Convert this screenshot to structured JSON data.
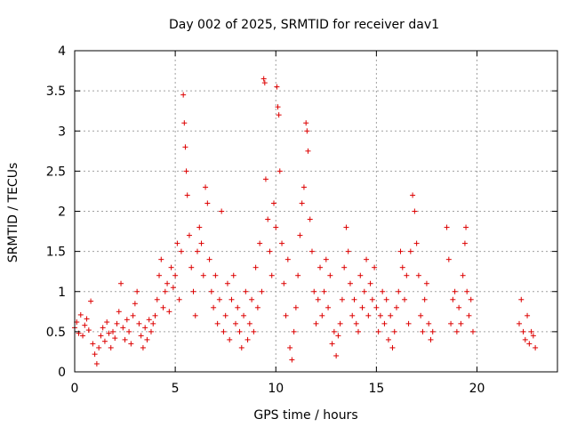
{
  "chart_data": {
    "type": "scatter",
    "title": "Day 002 of 2025, SRMTID for receiver dav1",
    "xlabel": "GPS time / hours",
    "ylabel": "SRMTID / TECUs",
    "xlim": [
      0,
      24
    ],
    "ylim": [
      0,
      4
    ],
    "xticks": [
      0,
      5,
      10,
      15,
      20
    ],
    "yticks": [
      0,
      0.5,
      1,
      1.5,
      2,
      2.5,
      3,
      3.5,
      4
    ],
    "xtick_labels": [
      "0",
      "5",
      "10",
      "15",
      "20"
    ],
    "ytick_labels": [
      "0",
      "0.5",
      "1",
      "1.5",
      "2",
      "2.5",
      "3",
      "3.5",
      "4"
    ],
    "grid": true,
    "marker": "+",
    "color": "#dd0000",
    "series": [
      {
        "name": "dav1",
        "points": [
          [
            0.0,
            0.55
          ],
          [
            0.1,
            0.62
          ],
          [
            0.2,
            0.48
          ],
          [
            0.3,
            0.71
          ],
          [
            0.4,
            0.45
          ],
          [
            0.5,
            0.58
          ],
          [
            0.6,
            0.66
          ],
          [
            0.7,
            0.52
          ],
          [
            0.8,
            0.88
          ],
          [
            0.9,
            0.35
          ],
          [
            1.0,
            0.22
          ],
          [
            1.1,
            0.1
          ],
          [
            1.2,
            0.3
          ],
          [
            1.3,
            0.45
          ],
          [
            1.4,
            0.55
          ],
          [
            1.5,
            0.38
          ],
          [
            1.6,
            0.62
          ],
          [
            1.7,
            0.48
          ],
          [
            1.8,
            0.3
          ],
          [
            1.9,
            0.5
          ],
          [
            2.0,
            0.42
          ],
          [
            2.1,
            0.6
          ],
          [
            2.2,
            0.75
          ],
          [
            2.3,
            1.1
          ],
          [
            2.4,
            0.55
          ],
          [
            2.5,
            0.4
          ],
          [
            2.6,
            0.65
          ],
          [
            2.7,
            0.5
          ],
          [
            2.8,
            0.35
          ],
          [
            2.9,
            0.7
          ],
          [
            3.0,
            0.85
          ],
          [
            3.1,
            1.0
          ],
          [
            3.2,
            0.6
          ],
          [
            3.3,
            0.45
          ],
          [
            3.4,
            0.3
          ],
          [
            3.5,
            0.55
          ],
          [
            3.6,
            0.4
          ],
          [
            3.7,
            0.65
          ],
          [
            3.8,
            0.5
          ],
          [
            3.9,
            0.6
          ],
          [
            4.0,
            0.7
          ],
          [
            4.1,
            0.9
          ],
          [
            4.2,
            1.2
          ],
          [
            4.3,
            1.4
          ],
          [
            4.4,
            0.8
          ],
          [
            4.5,
            1.0
          ],
          [
            4.6,
            1.1
          ],
          [
            4.7,
            0.75
          ],
          [
            4.8,
            1.3
          ],
          [
            4.9,
            1.05
          ],
          [
            5.0,
            1.2
          ],
          [
            5.1,
            1.6
          ],
          [
            5.2,
            0.9
          ],
          [
            5.3,
            1.5
          ],
          [
            5.4,
            3.45
          ],
          [
            5.45,
            3.1
          ],
          [
            5.5,
            2.8
          ],
          [
            5.55,
            2.5
          ],
          [
            5.6,
            2.2
          ],
          [
            5.7,
            1.7
          ],
          [
            5.8,
            1.3
          ],
          [
            5.9,
            1.0
          ],
          [
            6.0,
            0.7
          ],
          [
            6.1,
            1.5
          ],
          [
            6.2,
            1.8
          ],
          [
            6.3,
            1.6
          ],
          [
            6.4,
            1.2
          ],
          [
            6.5,
            2.3
          ],
          [
            6.6,
            2.1
          ],
          [
            6.7,
            1.4
          ],
          [
            6.8,
            1.0
          ],
          [
            6.9,
            0.8
          ],
          [
            7.0,
            1.2
          ],
          [
            7.1,
            0.6
          ],
          [
            7.2,
            0.9
          ],
          [
            7.3,
            2.0
          ],
          [
            7.4,
            0.5
          ],
          [
            7.5,
            0.7
          ],
          [
            7.6,
            1.1
          ],
          [
            7.7,
            0.4
          ],
          [
            7.8,
            0.9
          ],
          [
            7.9,
            1.2
          ],
          [
            8.0,
            0.6
          ],
          [
            8.1,
            0.8
          ],
          [
            8.2,
            0.5
          ],
          [
            8.3,
            0.3
          ],
          [
            8.4,
            0.7
          ],
          [
            8.5,
            1.0
          ],
          [
            8.6,
            0.4
          ],
          [
            8.7,
            0.6
          ],
          [
            8.8,
            0.9
          ],
          [
            8.9,
            0.5
          ],
          [
            9.0,
            1.3
          ],
          [
            9.1,
            0.8
          ],
          [
            9.2,
            1.6
          ],
          [
            9.3,
            1.0
          ],
          [
            9.4,
            3.65
          ],
          [
            9.45,
            3.6
          ],
          [
            9.5,
            2.4
          ],
          [
            9.6,
            1.9
          ],
          [
            9.7,
            1.5
          ],
          [
            9.8,
            1.2
          ],
          [
            9.9,
            2.1
          ],
          [
            10.0,
            1.8
          ],
          [
            10.05,
            3.55
          ],
          [
            10.1,
            3.3
          ],
          [
            10.15,
            3.2
          ],
          [
            10.2,
            2.5
          ],
          [
            10.3,
            1.6
          ],
          [
            10.4,
            1.1
          ],
          [
            10.5,
            0.7
          ],
          [
            10.6,
            1.4
          ],
          [
            10.7,
            0.3
          ],
          [
            10.8,
            0.15
          ],
          [
            10.9,
            0.5
          ],
          [
            11.0,
            0.8
          ],
          [
            11.1,
            1.2
          ],
          [
            11.2,
            1.7
          ],
          [
            11.3,
            2.1
          ],
          [
            11.4,
            2.3
          ],
          [
            11.5,
            3.1
          ],
          [
            11.55,
            3.0
          ],
          [
            11.6,
            2.75
          ],
          [
            11.7,
            1.9
          ],
          [
            11.8,
            1.5
          ],
          [
            11.9,
            1.0
          ],
          [
            12.0,
            0.6
          ],
          [
            12.1,
            0.9
          ],
          [
            12.2,
            1.3
          ],
          [
            12.3,
            0.7
          ],
          [
            12.4,
            1.0
          ],
          [
            12.5,
            1.4
          ],
          [
            12.6,
            0.8
          ],
          [
            12.7,
            1.2
          ],
          [
            12.8,
            0.35
          ],
          [
            12.9,
            0.5
          ],
          [
            13.0,
            0.2
          ],
          [
            13.1,
            0.45
          ],
          [
            13.2,
            0.6
          ],
          [
            13.3,
            0.9
          ],
          [
            13.4,
            1.3
          ],
          [
            13.5,
            1.8
          ],
          [
            13.6,
            1.5
          ],
          [
            13.7,
            1.1
          ],
          [
            13.8,
            0.7
          ],
          [
            13.9,
            0.9
          ],
          [
            14.0,
            0.6
          ],
          [
            14.1,
            0.5
          ],
          [
            14.2,
            1.2
          ],
          [
            14.3,
            0.8
          ],
          [
            14.4,
            1.0
          ],
          [
            14.5,
            1.4
          ],
          [
            14.6,
            0.7
          ],
          [
            14.7,
            1.1
          ],
          [
            14.8,
            0.9
          ],
          [
            14.9,
            1.3
          ],
          [
            15.0,
            0.8
          ],
          [
            15.1,
            0.5
          ],
          [
            15.2,
            0.7
          ],
          [
            15.3,
            1.0
          ],
          [
            15.4,
            0.6
          ],
          [
            15.5,
            0.9
          ],
          [
            15.6,
            0.4
          ],
          [
            15.7,
            0.7
          ],
          [
            15.8,
            0.3
          ],
          [
            15.9,
            0.5
          ],
          [
            16.0,
            0.8
          ],
          [
            16.1,
            1.0
          ],
          [
            16.2,
            1.5
          ],
          [
            16.3,
            1.3
          ],
          [
            16.4,
            0.9
          ],
          [
            16.5,
            1.2
          ],
          [
            16.6,
            0.6
          ],
          [
            16.7,
            1.5
          ],
          [
            16.8,
            2.2
          ],
          [
            16.9,
            2.0
          ],
          [
            17.0,
            1.6
          ],
          [
            17.1,
            1.2
          ],
          [
            17.2,
            0.7
          ],
          [
            17.3,
            0.5
          ],
          [
            17.4,
            0.9
          ],
          [
            17.5,
            1.1
          ],
          [
            17.6,
            0.6
          ],
          [
            17.7,
            0.4
          ],
          [
            17.8,
            0.5
          ],
          [
            18.5,
            1.8
          ],
          [
            18.6,
            1.4
          ],
          [
            18.7,
            0.6
          ],
          [
            18.8,
            0.9
          ],
          [
            18.9,
            1.0
          ],
          [
            19.0,
            0.5
          ],
          [
            19.1,
            0.8
          ],
          [
            19.2,
            0.6
          ],
          [
            19.3,
            1.2
          ],
          [
            19.4,
            1.6
          ],
          [
            19.45,
            1.8
          ],
          [
            19.5,
            1.0
          ],
          [
            19.6,
            0.7
          ],
          [
            19.7,
            0.9
          ],
          [
            19.8,
            0.5
          ],
          [
            22.1,
            0.6
          ],
          [
            22.2,
            0.9
          ],
          [
            22.3,
            0.5
          ],
          [
            22.4,
            0.4
          ],
          [
            22.5,
            0.7
          ],
          [
            22.6,
            0.35
          ],
          [
            22.7,
            0.5
          ],
          [
            22.8,
            0.45
          ],
          [
            22.9,
            0.3
          ]
        ]
      }
    ]
  }
}
